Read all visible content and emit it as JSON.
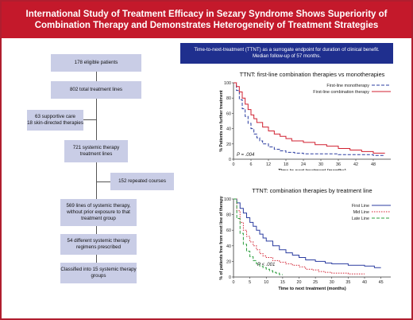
{
  "header": {
    "title": "International Study of Treatment Efficacy in Sezary Syndrome Shows Superiority of Combination Therapy and Demonstrates Heterogeneity of Treatment Strategies"
  },
  "note": {
    "line1": "Time-to-next-treatment (TTNT) as a surrogate endpoint for duration of clinical benefit.",
    "line2": "Median follow-up of 57 months."
  },
  "flow": {
    "patients": "178 eligible patients",
    "lines": "802 total treatment lines",
    "excluded_1": "63 supportive care",
    "excluded_2": "18 skin-directed therapies",
    "systemic": "721 systemic therapy treatment lines",
    "repeated": "152 repeated courses",
    "lines_no_exposure": "569 lines of systemic therapy, without prior exposure to that treatment group",
    "regimens": "54 different systemic therapy regimens prescribed",
    "classified": "Classified into 15 systemic therapy groups"
  },
  "chart_data": [
    {
      "type": "line",
      "title": "TTNT: first-line combination therapies vs monotherapies",
      "xlabel": "Time to next treatment (months)",
      "ylabel": "% Patients no further treatment",
      "xlim": [
        0,
        54
      ],
      "ylim": [
        0,
        100
      ],
      "xticks": [
        0,
        6,
        12,
        18,
        24,
        30,
        36,
        42,
        48
      ],
      "yticks": [
        0,
        20,
        40,
        60,
        80,
        100
      ],
      "legend_position": "top-right",
      "annotation": "P = .004",
      "series": [
        {
          "name": "First-line monotherapy",
          "color": "#2b3da0",
          "dash": "4,2",
          "x": [
            0,
            1,
            2,
            3,
            4,
            5,
            6,
            7,
            8,
            9,
            10,
            12,
            14,
            16,
            18,
            21,
            24,
            30,
            36,
            42,
            48,
            52
          ],
          "y": [
            100,
            90,
            78,
            66,
            56,
            47,
            40,
            33,
            28,
            24,
            20,
            16,
            13,
            11,
            9,
            8,
            7,
            7,
            6,
            6,
            5,
            5
          ]
        },
        {
          "name": "First-line combination therapy",
          "color": "#d12030",
          "dash": "",
          "x": [
            0,
            1,
            2,
            3,
            4,
            5,
            6,
            7,
            8,
            10,
            12,
            14,
            16,
            18,
            20,
            24,
            28,
            32,
            36,
            40,
            44,
            48,
            52
          ],
          "y": [
            100,
            95,
            88,
            80,
            72,
            65,
            58,
            53,
            48,
            42,
            37,
            33,
            30,
            27,
            24,
            22,
            19,
            17,
            14,
            12,
            10,
            8,
            8
          ]
        }
      ]
    },
    {
      "type": "line",
      "title": "TTNT: combination therapies by treatment line",
      "xlabel": "Time to next treatment (months)",
      "ylabel": "% of patients free from next line of therapy",
      "xlim": [
        0,
        48
      ],
      "ylim": [
        0,
        100
      ],
      "xticks": [
        0,
        5,
        10,
        15,
        20,
        25,
        30,
        35,
        40,
        45
      ],
      "yticks": [
        0,
        20,
        40,
        60,
        80,
        100
      ],
      "legend_position": "top-right",
      "annotation": "P < .001",
      "series": [
        {
          "name": "First Line",
          "color": "#2b3da0",
          "dash": "",
          "x": [
            0,
            1,
            2,
            3,
            4,
            5,
            6,
            7,
            8,
            9,
            10,
            12,
            14,
            16,
            18,
            20,
            22,
            25,
            28,
            30,
            35,
            40,
            43,
            45
          ],
          "y": [
            100,
            95,
            88,
            82,
            76,
            70,
            65,
            60,
            55,
            50,
            46,
            40,
            35,
            31,
            28,
            25,
            22,
            20,
            18,
            17,
            15,
            14,
            12,
            12
          ]
        },
        {
          "name": "Mid Line",
          "color": "#d12030",
          "dash": "1.5,1.5",
          "x": [
            0,
            1,
            2,
            3,
            4,
            5,
            6,
            7,
            8,
            9,
            10,
            12,
            14,
            16,
            18,
            20,
            22,
            24,
            26,
            28,
            30,
            35,
            40
          ],
          "y": [
            100,
            85,
            70,
            60,
            52,
            45,
            40,
            35,
            30,
            27,
            25,
            21,
            19,
            17,
            15,
            13,
            10,
            9,
            7,
            6,
            5,
            4,
            4
          ]
        },
        {
          "name": "Late Line",
          "color": "#2d9e3e",
          "dash": "4,2",
          "x": [
            0,
            1,
            2,
            3,
            4,
            5,
            6,
            7,
            8,
            9,
            10,
            11,
            12,
            13,
            14,
            15
          ],
          "y": [
            100,
            75,
            56,
            42,
            33,
            26,
            21,
            17,
            14,
            12,
            10,
            8,
            6,
            5,
            3,
            3
          ]
        }
      ]
    }
  ]
}
